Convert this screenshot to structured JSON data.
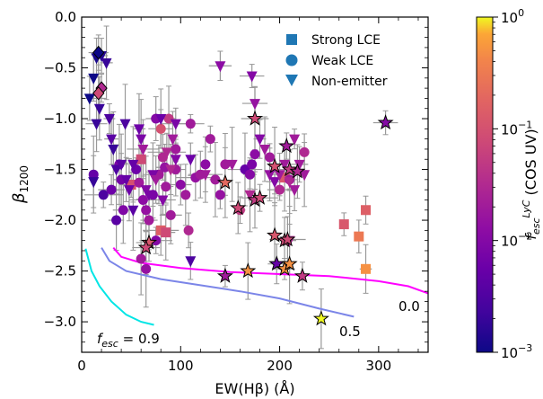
{
  "chart_data": {
    "type": "scatter",
    "xlabel": "EW(Hβ) (Å)",
    "ylabel": "β",
    "ylabel_sub": "1200",
    "xlim": [
      0,
      350
    ],
    "ylim": [
      -3.3,
      0
    ],
    "x_ticks": [
      0,
      100,
      200,
      300
    ],
    "y_ticks": [
      0.0,
      -0.5,
      -1.0,
      -1.5,
      -2.0,
      -2.5,
      -3.0
    ],
    "y_tick_labels": [
      "0.0",
      "−0.5",
      "−1.0",
      "−1.5",
      "−2.0",
      "−2.5",
      "−3.0"
    ],
    "colorbar": {
      "label_main": "f",
      "label_sub": "esc",
      "label_sup": "LyC",
      "label_suffix": "(COS UV)",
      "scale": "log",
      "range": [
        0.001,
        1
      ],
      "ticks": [
        0.001,
        0.01,
        0.1,
        1
      ],
      "tick_labels": [
        {
          "base": "10",
          "exp": "−3"
        },
        {
          "base": "10",
          "exp": "−2"
        },
        {
          "base": "10",
          "exp": "−1"
        },
        {
          "base": "10",
          "exp": "0"
        }
      ]
    },
    "legend": {
      "placement": "top-right",
      "entries": [
        {
          "label": "Strong LCE",
          "marker": "square"
        },
        {
          "label": "Weak LCE",
          "marker": "circle"
        },
        {
          "label": "Non-emitter",
          "marker": "triangle-down"
        }
      ],
      "color": "#1f77b4"
    },
    "model_curves": [
      {
        "label": "0.0",
        "color": "#ff00ff",
        "points": [
          [
            32,
            -2.27
          ],
          [
            40,
            -2.36
          ],
          [
            60,
            -2.42
          ],
          [
            100,
            -2.47
          ],
          [
            150,
            -2.51
          ],
          [
            200,
            -2.53
          ],
          [
            250,
            -2.55
          ],
          [
            300,
            -2.6
          ],
          [
            330,
            -2.65
          ],
          [
            350,
            -2.72
          ]
        ]
      },
      {
        "label": "0.5",
        "color": "#7b85e8",
        "points": [
          [
            20,
            -2.27
          ],
          [
            28,
            -2.4
          ],
          [
            45,
            -2.5
          ],
          [
            80,
            -2.58
          ],
          [
            120,
            -2.64
          ],
          [
            160,
            -2.7
          ],
          [
            200,
            -2.77
          ],
          [
            240,
            -2.87
          ],
          [
            275,
            -2.95
          ]
        ]
      },
      {
        "label": "0.9",
        "color": "#00e5e5",
        "points": [
          [
            4,
            -2.28
          ],
          [
            10,
            -2.5
          ],
          [
            18,
            -2.65
          ],
          [
            30,
            -2.8
          ],
          [
            45,
            -2.93
          ],
          [
            60,
            -3.0
          ],
          [
            73,
            -3.03
          ]
        ]
      }
    ],
    "curve_label_prefix": {
      "main": "f",
      "sub": "esc",
      "tail": " = "
    },
    "series": [
      {
        "marker": "square",
        "points": [
          {
            "x": 60,
            "y": -1.4,
            "f": 0.08
          },
          {
            "x": 50,
            "y": -1.65,
            "f": 0.1
          },
          {
            "x": 80,
            "y": -2.1,
            "f": 0.15
          },
          {
            "x": 85,
            "y": -2.12,
            "f": 0.08
          },
          {
            "x": 205,
            "y": -1.58,
            "f": 0.12
          },
          {
            "x": 265,
            "y": -2.04,
            "f": 0.12
          },
          {
            "x": 280,
            "y": -2.16,
            "f": 0.3
          },
          {
            "x": 287,
            "y": -1.9,
            "f": 0.15
          },
          {
            "x": 287,
            "y": -2.48,
            "f": 0.5
          }
        ]
      },
      {
        "marker": "circle",
        "points": [
          {
            "x": 12,
            "y": -1.55,
            "f": 0.005
          },
          {
            "x": 22,
            "y": -1.75,
            "f": 0.003
          },
          {
            "x": 30,
            "y": -1.7,
            "f": 0.006
          },
          {
            "x": 35,
            "y": -2.0,
            "f": 0.004
          },
          {
            "x": 38,
            "y": -1.45,
            "f": 0.008
          },
          {
            "x": 40,
            "y": -1.6,
            "f": 0.007
          },
          {
            "x": 42,
            "y": -1.9,
            "f": 0.009
          },
          {
            "x": 55,
            "y": -1.5,
            "f": 0.006
          },
          {
            "x": 58,
            "y": -1.63,
            "f": 0.02
          },
          {
            "x": 62,
            "y": -1.8,
            "f": 0.012
          },
          {
            "x": 65,
            "y": -1.9,
            "f": 0.015
          },
          {
            "x": 68,
            "y": -2.0,
            "f": 0.02
          },
          {
            "x": 72,
            "y": -1.75,
            "f": 0.008
          },
          {
            "x": 75,
            "y": -1.0,
            "f": 0.01
          },
          {
            "x": 78,
            "y": -1.55,
            "f": 0.02
          },
          {
            "x": 80,
            "y": -1.1,
            "f": 0.1
          },
          {
            "x": 82,
            "y": -1.38,
            "f": 0.03
          },
          {
            "x": 84,
            "y": -1.48,
            "f": 0.015
          },
          {
            "x": 85,
            "y": -1.67,
            "f": 0.02
          },
          {
            "x": 75,
            "y": -2.2,
            "f": 0.01
          },
          {
            "x": 60,
            "y": -2.38,
            "f": 0.02
          },
          {
            "x": 65,
            "y": -2.48,
            "f": 0.015
          },
          {
            "x": 88,
            "y": -1.0,
            "f": 0.05
          },
          {
            "x": 95,
            "y": -1.5,
            "f": 0.02
          },
          {
            "x": 100,
            "y": -1.65,
            "f": 0.012
          },
          {
            "x": 105,
            "y": -1.75,
            "f": 0.02
          },
          {
            "x": 108,
            "y": -2.1,
            "f": 0.03
          },
          {
            "x": 110,
            "y": -1.05,
            "f": 0.02
          },
          {
            "x": 115,
            "y": -1.58,
            "f": 0.015
          },
          {
            "x": 120,
            "y": -1.55,
            "f": 0.02
          },
          {
            "x": 125,
            "y": -1.45,
            "f": 0.012
          },
          {
            "x": 130,
            "y": -1.2,
            "f": 0.02
          },
          {
            "x": 135,
            "y": -1.6,
            "f": 0.02
          },
          {
            "x": 140,
            "y": -1.75,
            "f": 0.015
          },
          {
            "x": 145,
            "y": -1.45,
            "f": 0.02
          },
          {
            "x": 165,
            "y": -1.5,
            "f": 0.005
          },
          {
            "x": 170,
            "y": -1.55,
            "f": 0.01
          },
          {
            "x": 172,
            "y": -1.45,
            "f": 0.008
          },
          {
            "x": 175,
            "y": -1.35,
            "f": 0.012
          },
          {
            "x": 190,
            "y": -1.38,
            "f": 0.02
          },
          {
            "x": 200,
            "y": -1.7,
            "f": 0.03
          },
          {
            "x": 210,
            "y": -1.6,
            "f": 0.02
          },
          {
            "x": 225,
            "y": -1.33,
            "f": 0.03
          },
          {
            "x": 160,
            "y": -1.9,
            "f": 0.05
          },
          {
            "x": 90,
            "y": -1.95,
            "f": 0.02
          },
          {
            "x": 95,
            "y": -1.3,
            "f": 0.02
          }
        ]
      },
      {
        "marker": "triangle-down",
        "points": [
          {
            "x": 8,
            "y": -0.8,
            "f": 0.001
          },
          {
            "x": 12,
            "y": -0.6,
            "f": 0.001
          },
          {
            "x": 15,
            "y": -0.4,
            "f": 0.0012
          },
          {
            "x": 18,
            "y": -0.9,
            "f": 0.002
          },
          {
            "x": 20,
            "y": -0.38,
            "f": 0.0015
          },
          {
            "x": 25,
            "y": -0.45,
            "f": 0.002
          },
          {
            "x": 28,
            "y": -1.0,
            "f": 0.003
          },
          {
            "x": 15,
            "y": -1.05,
            "f": 0.002
          },
          {
            "x": 12,
            "y": -1.62,
            "f": 0.002
          },
          {
            "x": 30,
            "y": -1.2,
            "f": 0.004
          },
          {
            "x": 32,
            "y": -1.3,
            "f": 0.002
          },
          {
            "x": 35,
            "y": -1.5,
            "f": 0.003
          },
          {
            "x": 40,
            "y": -1.45,
            "f": 0.004
          },
          {
            "x": 44,
            "y": -1.05,
            "f": 0.003
          },
          {
            "x": 45,
            "y": -1.6,
            "f": 0.005
          },
          {
            "x": 48,
            "y": -1.7,
            "f": 0.006
          },
          {
            "x": 52,
            "y": -1.45,
            "f": 0.005
          },
          {
            "x": 52,
            "y": -1.9,
            "f": 0.004
          },
          {
            "x": 58,
            "y": -1.1,
            "f": 0.006
          },
          {
            "x": 60,
            "y": -1.2,
            "f": 0.008
          },
          {
            "x": 62,
            "y": -1.3,
            "f": 0.02
          },
          {
            "x": 65,
            "y": -1.7,
            "f": 0.01
          },
          {
            "x": 68,
            "y": -1.75,
            "f": 0.008
          },
          {
            "x": 72,
            "y": -1.55,
            "f": 0.008
          },
          {
            "x": 75,
            "y": -1.6,
            "f": 0.02
          },
          {
            "x": 80,
            "y": -1.0,
            "f": 0.006
          },
          {
            "x": 82,
            "y": -1.8,
            "f": 0.01
          },
          {
            "x": 86,
            "y": -1.33,
            "f": 0.03
          },
          {
            "x": 90,
            "y": -1.5,
            "f": 0.03
          },
          {
            "x": 95,
            "y": -1.4,
            "f": 0.01
          },
          {
            "x": 110,
            "y": -1.4,
            "f": 0.006
          },
          {
            "x": 110,
            "y": -2.4,
            "f": 0.003
          },
          {
            "x": 125,
            "y": -1.55,
            "f": 0.02
          },
          {
            "x": 140,
            "y": -0.48,
            "f": 0.012
          },
          {
            "x": 152,
            "y": -1.45,
            "f": 0.02
          },
          {
            "x": 172,
            "y": -0.58,
            "f": 0.01
          },
          {
            "x": 175,
            "y": -0.85,
            "f": 0.015
          },
          {
            "x": 180,
            "y": -1.2,
            "f": 0.01
          },
          {
            "x": 185,
            "y": -1.3,
            "f": 0.02
          },
          {
            "x": 190,
            "y": -1.55,
            "f": 0.015
          },
          {
            "x": 195,
            "y": -1.62,
            "f": 0.01
          },
          {
            "x": 200,
            "y": -1.55,
            "f": 0.02
          },
          {
            "x": 210,
            "y": -1.62,
            "f": 0.03
          },
          {
            "x": 215,
            "y": -1.2,
            "f": 0.02
          },
          {
            "x": 220,
            "y": -1.45,
            "f": 0.02
          },
          {
            "x": 225,
            "y": -1.55,
            "f": 0.02
          },
          {
            "x": 205,
            "y": -1.45,
            "f": 0.02
          },
          {
            "x": 170,
            "y": -1.75,
            "f": 0.03
          },
          {
            "x": 215,
            "y": -1.7,
            "f": 0.02
          },
          {
            "x": 210,
            "y": -2.2,
            "f": 0.03
          },
          {
            "x": 95,
            "y": -1.05,
            "f": 0.008
          },
          {
            "x": 92,
            "y": -1.2,
            "f": 0.02
          }
        ]
      },
      {
        "marker": "diamond",
        "points": [
          {
            "x": 17,
            "y": -0.35,
            "f": 0.001
          },
          {
            "x": 20,
            "y": -0.7,
            "f": 0.03
          },
          {
            "x": 17,
            "y": -0.75,
            "f": 0.08
          }
        ]
      },
      {
        "marker": "star",
        "points": [
          {
            "x": 175,
            "y": -1.0,
            "f": 0.08
          },
          {
            "x": 207,
            "y": -1.27,
            "f": 0.02
          },
          {
            "x": 195,
            "y": -1.47,
            "f": 0.1
          },
          {
            "x": 210,
            "y": -1.5,
            "f": 0.05
          },
          {
            "x": 218,
            "y": -1.52,
            "f": 0.03
          },
          {
            "x": 145,
            "y": -1.63,
            "f": 0.2
          },
          {
            "x": 158,
            "y": -1.88,
            "f": 0.08
          },
          {
            "x": 175,
            "y": -1.8,
            "f": 0.05
          },
          {
            "x": 180,
            "y": -1.78,
            "f": 0.08
          },
          {
            "x": 195,
            "y": -2.15,
            "f": 0.12
          },
          {
            "x": 205,
            "y": -2.2,
            "f": 0.08
          },
          {
            "x": 208,
            "y": -2.19,
            "f": 0.08
          },
          {
            "x": 197,
            "y": -2.43,
            "f": 0.005
          },
          {
            "x": 205,
            "y": -2.48,
            "f": 0.5
          },
          {
            "x": 210,
            "y": -2.43,
            "f": 0.5
          },
          {
            "x": 168,
            "y": -2.5,
            "f": 0.5
          },
          {
            "x": 145,
            "y": -2.55,
            "f": 0.02
          },
          {
            "x": 223,
            "y": -2.55,
            "f": 0.05
          },
          {
            "x": 68,
            "y": -2.22,
            "f": 0.12
          },
          {
            "x": 65,
            "y": -2.27,
            "f": 0.08
          },
          {
            "x": 242,
            "y": -2.97,
            "f": 1.0
          },
          {
            "x": 307,
            "y": -1.04,
            "f": 0.01
          }
        ]
      }
    ]
  }
}
